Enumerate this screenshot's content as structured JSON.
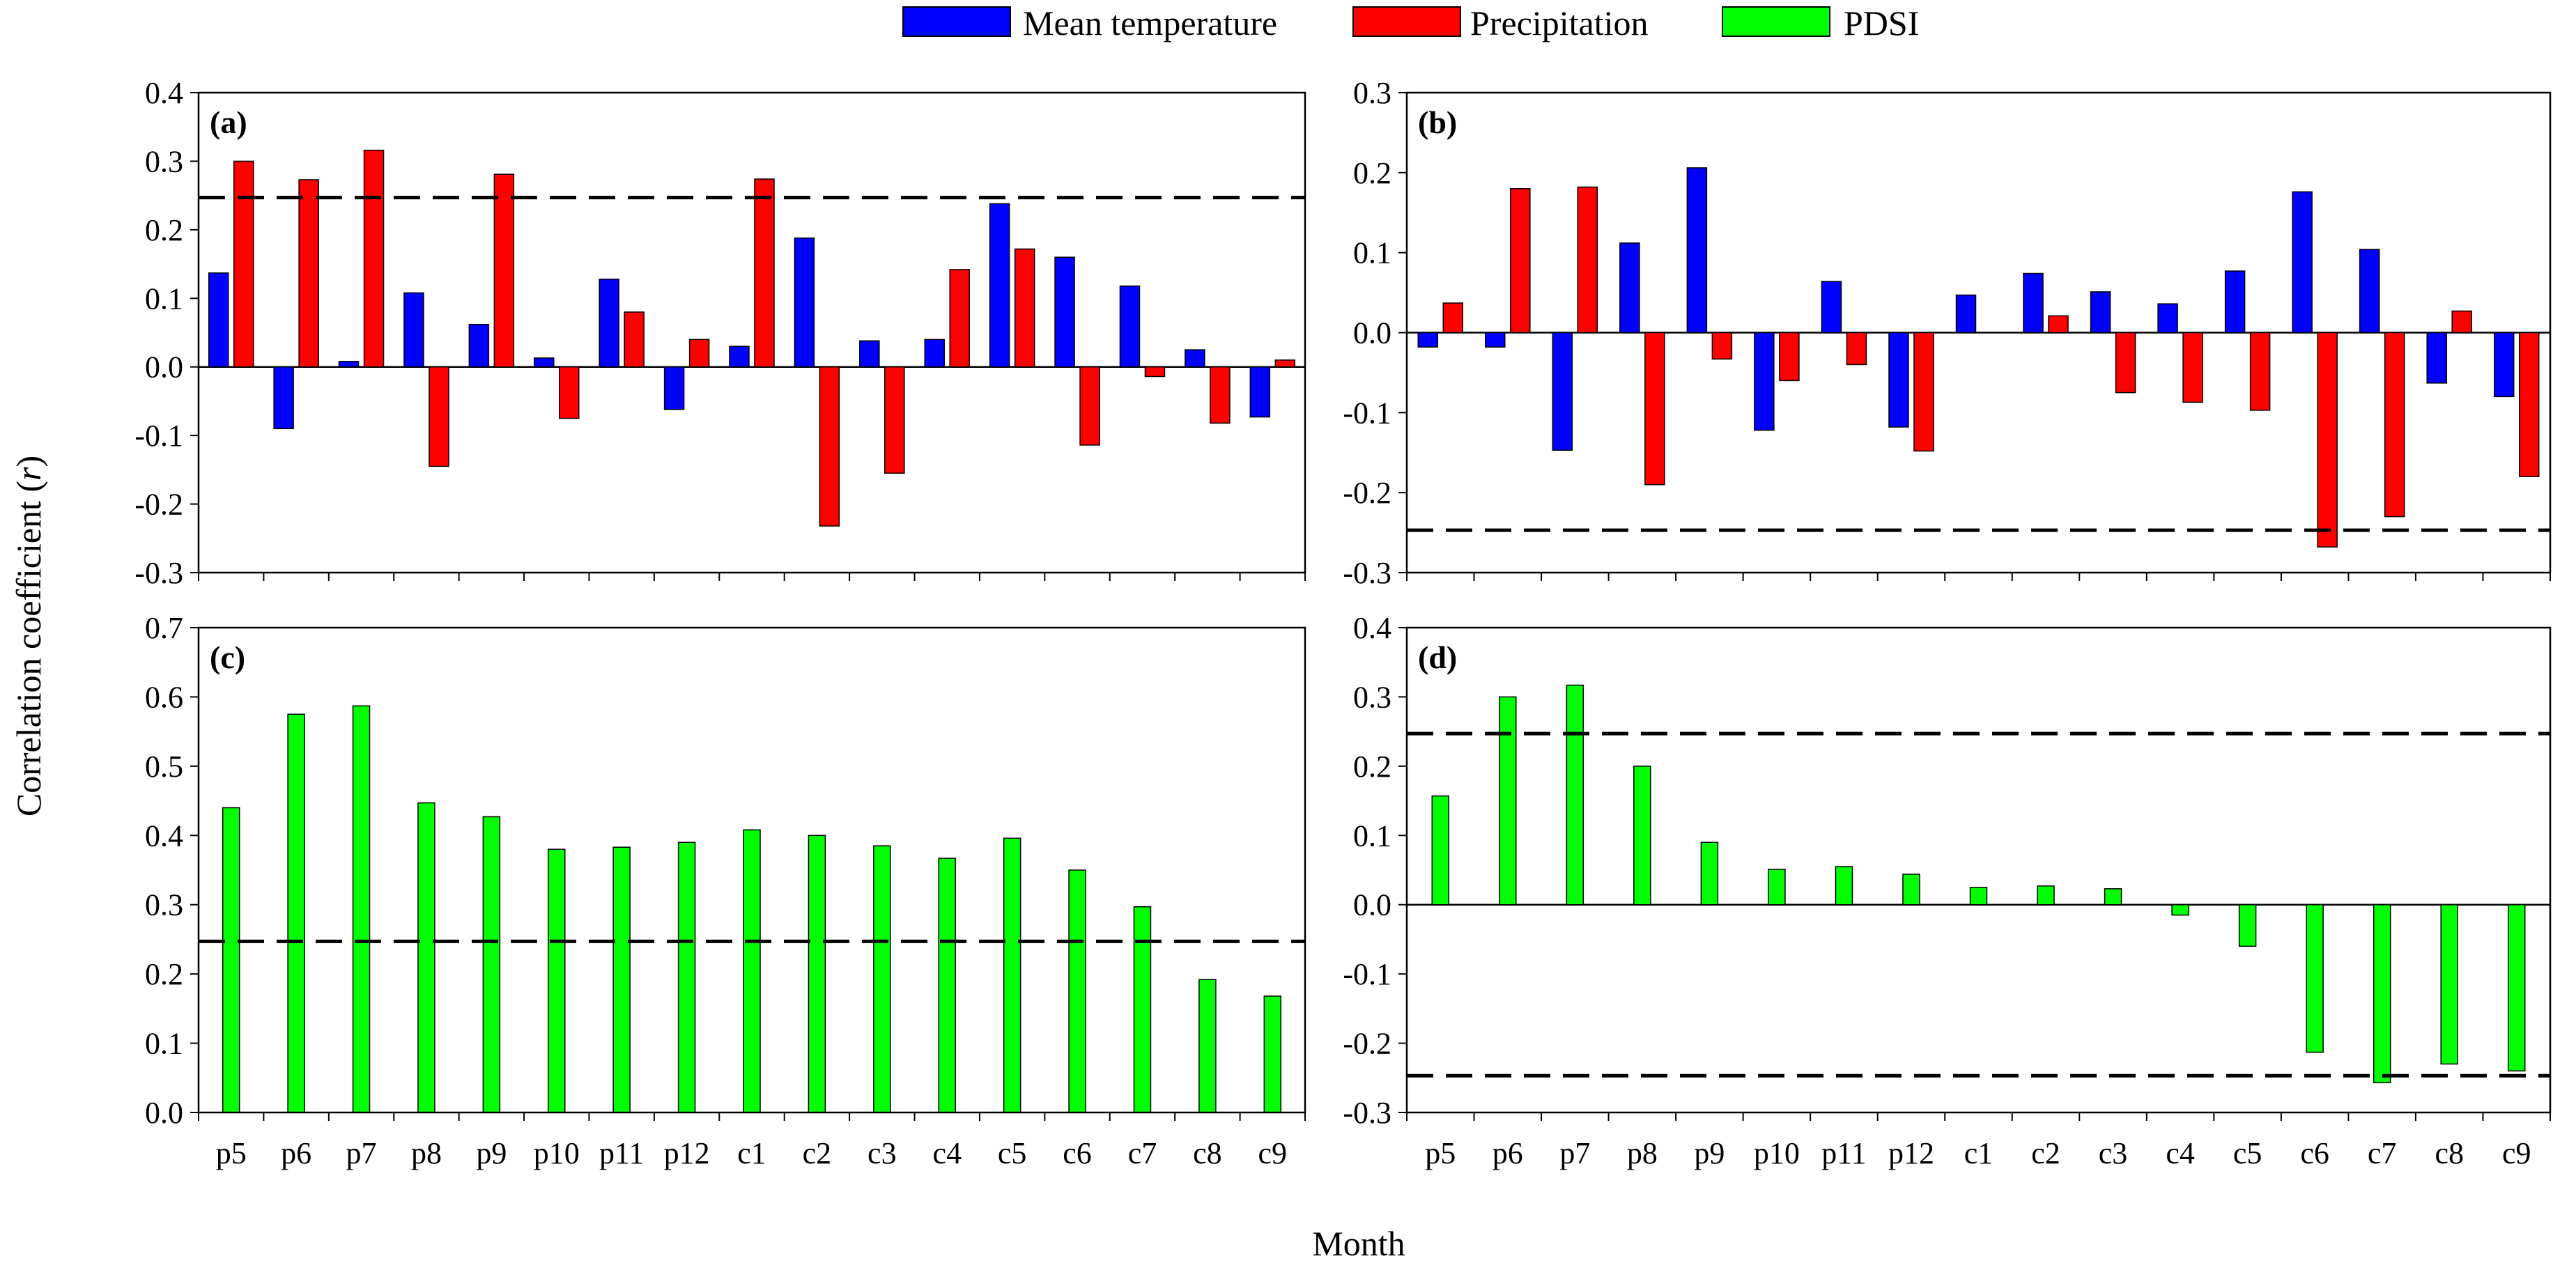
{
  "legend": {
    "items": [
      {
        "label": "Mean temperature",
        "color": "#0000ff"
      },
      {
        "label": "Precipitation",
        "color": "#ff0000"
      },
      {
        "label": "PDSI",
        "color": "#00ff00"
      }
    ]
  },
  "axes": {
    "ylabel_prefix": "Correlation coefficient (",
    "ylabel_symbol": "r",
    "ylabel_suffix": ")",
    "xlabel": "Month"
  },
  "chart_data": [
    {
      "panel": "(a)",
      "type": "bar",
      "categories": [
        "p5",
        "p6",
        "p7",
        "p8",
        "p9",
        "p10",
        "p11",
        "p12",
        "c1",
        "c2",
        "c3",
        "c4",
        "c5",
        "c6",
        "c7",
        "c8",
        "c9"
      ],
      "ylim": [
        -0.3,
        0.4
      ],
      "yticks": [
        "-0.3",
        "-0.2",
        "-0.1",
        "0.0",
        "0.1",
        "0.2",
        "0.3",
        "0.4"
      ],
      "threshold_lines": [
        0.247
      ],
      "series": [
        {
          "name": "Mean temperature",
          "color": "#0000ff",
          "values": [
            0.137,
            -0.09,
            0.008,
            0.108,
            0.062,
            0.013,
            0.128,
            -0.062,
            0.03,
            0.188,
            0.038,
            0.04,
            0.238,
            0.16,
            0.118,
            0.025,
            -0.073
          ]
        },
        {
          "name": "Precipitation",
          "color": "#ff0000",
          "values": [
            0.3,
            0.273,
            0.316,
            -0.145,
            0.281,
            -0.075,
            0.08,
            0.04,
            0.274,
            -0.232,
            -0.155,
            0.142,
            0.172,
            -0.114,
            -0.014,
            -0.082,
            0.01
          ]
        }
      ],
      "show_xticklabels": false
    },
    {
      "panel": "(b)",
      "type": "bar",
      "categories": [
        "p5",
        "p6",
        "p7",
        "p8",
        "p9",
        "p10",
        "p11",
        "p12",
        "c1",
        "c2",
        "c3",
        "c4",
        "c5",
        "c6",
        "c7",
        "c8",
        "c9"
      ],
      "ylim": [
        -0.3,
        0.3
      ],
      "yticks": [
        "-0.3",
        "-0.2",
        "-0.1",
        "0.0",
        "0.1",
        "0.2",
        "0.3"
      ],
      "threshold_lines": [
        -0.247
      ],
      "series": [
        {
          "name": "Mean temperature",
          "color": "#0000ff",
          "values": [
            -0.018,
            -0.018,
            -0.147,
            0.112,
            0.206,
            -0.122,
            0.064,
            -0.118,
            0.047,
            0.074,
            0.051,
            0.036,
            0.077,
            0.176,
            0.104,
            -0.063,
            -0.08
          ]
        },
        {
          "name": "Precipitation",
          "color": "#ff0000",
          "values": [
            0.037,
            0.18,
            0.182,
            -0.19,
            -0.033,
            -0.06,
            -0.04,
            -0.148,
            0,
            0.021,
            -0.075,
            -0.087,
            -0.097,
            -0.268,
            -0.23,
            0.027,
            -0.18
          ]
        }
      ],
      "show_xticklabels": false
    },
    {
      "panel": "(c)",
      "type": "bar",
      "categories": [
        "p5",
        "p6",
        "p7",
        "p8",
        "p9",
        "p10",
        "p11",
        "p12",
        "c1",
        "c2",
        "c3",
        "c4",
        "c5",
        "c6",
        "c7",
        "c8",
        "c9"
      ],
      "ylim": [
        0.0,
        0.7
      ],
      "yticks": [
        "0.0",
        "0.1",
        "0.2",
        "0.3",
        "0.4",
        "0.5",
        "0.6",
        "0.7"
      ],
      "threshold_lines": [
        0.247
      ],
      "series": [
        {
          "name": "PDSI",
          "color": "#00ff00",
          "values": [
            0.44,
            0.575,
            0.587,
            0.447,
            0.427,
            0.38,
            0.383,
            0.39,
            0.408,
            0.4,
            0.385,
            0.367,
            0.396,
            0.35,
            0.297,
            0.192,
            0.168
          ]
        }
      ],
      "show_xticklabels": true
    },
    {
      "panel": "(d)",
      "type": "bar",
      "categories": [
        "p5",
        "p6",
        "p7",
        "p8",
        "p9",
        "p10",
        "p11",
        "p12",
        "c1",
        "c2",
        "c3",
        "c4",
        "c5",
        "c6",
        "c7",
        "c8",
        "c9"
      ],
      "ylim": [
        -0.3,
        0.4
      ],
      "yticks": [
        "-0.3",
        "-0.2",
        "-0.1",
        "0.0",
        "0.1",
        "0.2",
        "0.3",
        "0.4"
      ],
      "threshold_lines": [
        0.247,
        -0.247
      ],
      "series": [
        {
          "name": "PDSI",
          "color": "#00ff00",
          "values": [
            0.157,
            0.3,
            0.317,
            0.2,
            0.09,
            0.051,
            0.055,
            0.044,
            0.025,
            0.027,
            0.023,
            -0.015,
            -0.06,
            -0.213,
            -0.257,
            -0.23,
            -0.24
          ]
        }
      ],
      "show_xticklabels": true
    }
  ]
}
